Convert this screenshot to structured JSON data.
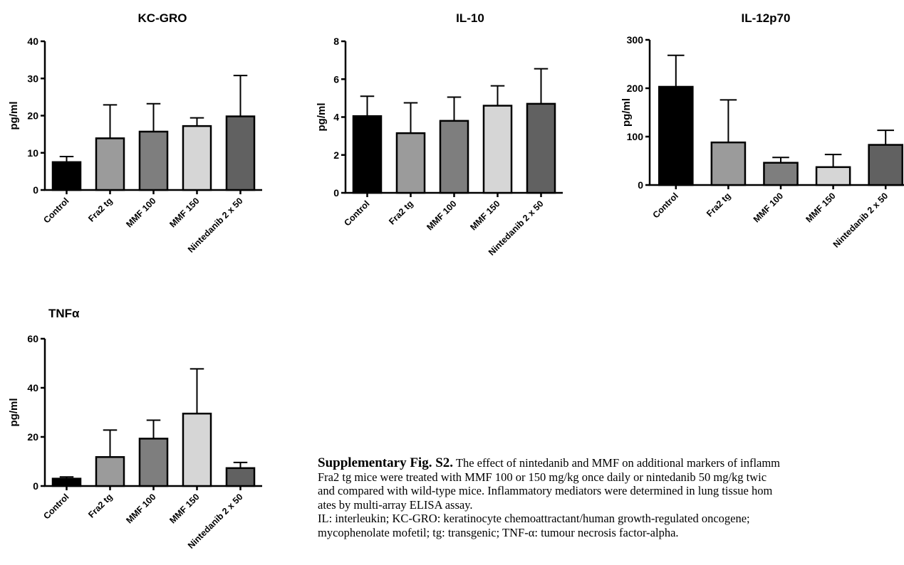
{
  "chart_data": [
    {
      "type": "bar",
      "title": "KC-GRO",
      "ylabel": "pg/ml",
      "ylim": [
        0,
        40
      ],
      "yticks": [
        0,
        10,
        20,
        30,
        40
      ],
      "categories": [
        "Control",
        "Fra2 tg",
        "MMF 100",
        "MMF 150",
        "Nintedanib 2 x 50"
      ],
      "values": [
        7.5,
        13.9,
        15.7,
        17.2,
        19.8
      ],
      "errors": [
        1.5,
        9.0,
        7.5,
        2.2,
        11.0
      ],
      "colors": [
        "#000000",
        "#9b9b9b",
        "#7e7e7e",
        "#d6d6d6",
        "#616161"
      ]
    },
    {
      "type": "bar",
      "title": "IL-10",
      "ylabel": "pg/ml",
      "ylim": [
        0,
        8
      ],
      "yticks": [
        0,
        2,
        4,
        6,
        8
      ],
      "categories": [
        "Control",
        "Fra2 tg",
        "MMF 100",
        "MMF 150",
        "Nintedanib 2 x 50"
      ],
      "values": [
        4.05,
        3.15,
        3.8,
        4.6,
        4.7
      ],
      "errors": [
        1.05,
        1.6,
        1.25,
        1.05,
        1.85
      ],
      "colors": [
        "#000000",
        "#9b9b9b",
        "#7e7e7e",
        "#d6d6d6",
        "#616161"
      ]
    },
    {
      "type": "bar",
      "title": "IL-12p70",
      "ylabel": "pg/ml",
      "ylim": [
        0,
        300
      ],
      "yticks": [
        0,
        100,
        200,
        300
      ],
      "categories": [
        "Control",
        "Fra2 tg",
        "MMF 100",
        "MMF 150",
        "Nintedanib 2 x 50"
      ],
      "values": [
        203,
        88,
        46,
        37,
        83
      ],
      "errors": [
        65,
        88,
        11,
        26,
        30
      ],
      "colors": [
        "#000000",
        "#9b9b9b",
        "#7e7e7e",
        "#d6d6d6",
        "#616161"
      ]
    },
    {
      "type": "bar",
      "title": "TNFα",
      "ylabel": "pg/ml",
      "ylim": [
        0,
        60
      ],
      "yticks": [
        0,
        20,
        40,
        60
      ],
      "categories": [
        "Control",
        "Fra2 tg",
        "MMF 100",
        "MMF 150",
        "Nintedanib 2 x 50"
      ],
      "values": [
        3.0,
        11.8,
        19.3,
        29.5,
        7.3
      ],
      "errors": [
        0.7,
        11.0,
        7.5,
        18.2,
        2.3
      ],
      "colors": [
        "#000000",
        "#9b9b9b",
        "#7e7e7e",
        "#d6d6d6",
        "#616161"
      ]
    }
  ],
  "caption": {
    "heading": "Supplementary Fig. S2.",
    "line1": "The effect of nintedanib and MMF on additional markers of inflamm",
    "line2": "Fra2 tg mice were treated with MMF 100 or 150 mg/kg once daily or nintedanib 50 mg/kg twic",
    "line3": "and compared with wild-type mice. Inflammatory mediators were determined in lung tissue hom",
    "line4": "ates by multi-array ELISA assay.",
    "line5": "IL: interleukin; KC-GRO: keratinocyte chemoattractant/human growth-regulated oncogene;",
    "line6": "mycophenolate mofetil; tg: transgenic; TNF-α: tumour necrosis factor-alpha."
  }
}
